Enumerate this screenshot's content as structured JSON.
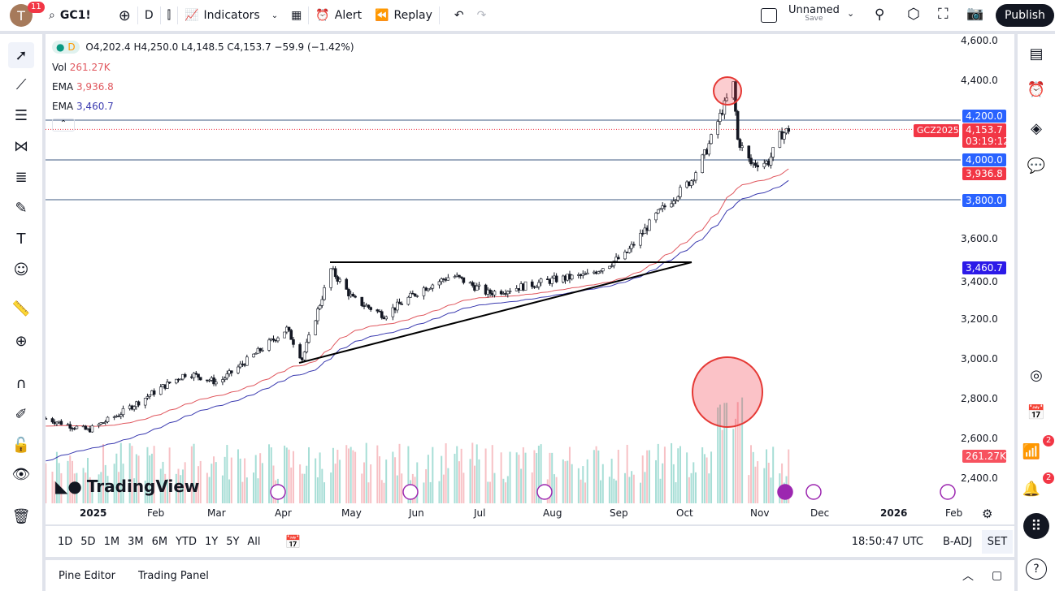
{
  "topbar": {
    "avatar_letter": "T",
    "notif_count": "11",
    "symbol": "GC1!",
    "interval": "D",
    "indicators": "Indicators",
    "alert": "Alert",
    "replay": "Replay",
    "layout_name": "Unnamed",
    "layout_sub": "Save",
    "publish": "Publish"
  },
  "legend": {
    "interval": "D",
    "ohlc": "O4,202.4 H4,250.0 L4,148.5 C4,153.7 −59.9 (−1.42%)",
    "vol_label": "Vol",
    "vol_value": "261.27K",
    "ema1_label": "EMA",
    "ema1_value": "3,936.8",
    "ema2_label": "EMA",
    "ema2_value": "3,460.7"
  },
  "price_axis": {
    "ticks": [
      "4,600.0",
      "4,400.0",
      "3,600.0",
      "3,400.0",
      "3,200.0",
      "3,000.0",
      "2,800.0",
      "2,600.0",
      "2,400.0"
    ],
    "tags": {
      "line_4200": "4,200.0",
      "last_price": "4,153.7",
      "countdown": "03:19:12",
      "contract": "GCZ2025",
      "line_4000": "4,000.0",
      "ema50": "3,936.8",
      "line_3800": "3,800.0",
      "ema200": "3,460.7",
      "volume": "261.27K"
    }
  },
  "time_axis": [
    "2025",
    "Feb",
    "Mar",
    "Apr",
    "May",
    "Jun",
    "Jul",
    "Aug",
    "Sep",
    "Oct",
    "Nov",
    "Dec",
    "2026",
    "Feb"
  ],
  "logo": "TradingView",
  "ranges": [
    "1D",
    "5D",
    "1M",
    "3M",
    "6M",
    "YTD",
    "1Y",
    "5Y",
    "All"
  ],
  "clock": "18:50:47 UTC",
  "badj": "B-ADJ",
  "session": "SET",
  "panel": {
    "pine": "Pine Editor",
    "trading": "Trading Panel"
  },
  "right_badges": {
    "ideas": "2",
    "notifications": "2"
  },
  "colors": {
    "up": "#089981",
    "down": "#f23645",
    "ema50": "#e0575e",
    "ema200": "#3b3bb0",
    "hline": "#3d5a80",
    "blue_tag": "#2962ff"
  },
  "chart_data": {
    "type": "candlestick",
    "price_path_dates": [
      "2024-12-13",
      "2025-01-01",
      "2025-01-15",
      "2025-02-01",
      "2025-02-15",
      "2025-03-01",
      "2025-03-15",
      "2025-04-01",
      "2025-04-08",
      "2025-04-21",
      "2025-05-01",
      "2025-05-15",
      "2025-06-01",
      "2025-06-15",
      "2025-07-01",
      "2025-07-15",
      "2025-08-01",
      "2025-08-15",
      "2025-09-01",
      "2025-09-15",
      "2025-10-01",
      "2025-10-08",
      "2025-10-15",
      "2025-10-20",
      "2025-10-22",
      "2025-10-28",
      "2025-11-05",
      "2025-11-10",
      "2025-11-14"
    ],
    "price_path_closes": [
      2700,
      2640,
      2720,
      2840,
      2930,
      2880,
      3000,
      3150,
      3000,
      3450,
      3300,
      3220,
      3350,
      3420,
      3330,
      3360,
      3400,
      3420,
      3520,
      3720,
      3900,
      4050,
      4250,
      4380,
      4100,
      3980,
      3990,
      4120,
      4153.7
    ],
    "horizontal_levels": [
      4200,
      4000,
      3800
    ],
    "ylim": [
      2300,
      4650
    ]
  }
}
